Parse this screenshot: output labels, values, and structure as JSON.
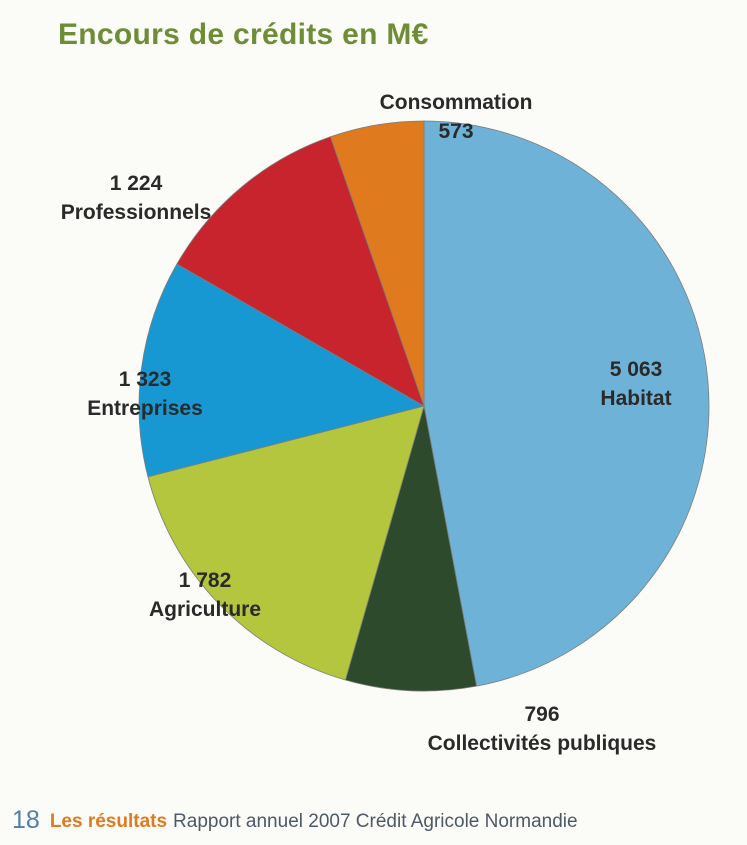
{
  "title": "Encours de crédits en M€",
  "chart_data": {
    "type": "pie",
    "title": "Encours de crédits en M€",
    "slices": [
      {
        "label": "Habitat",
        "value": 5063,
        "value_text": "5 063",
        "color": "#6fb2d8"
      },
      {
        "label": "Collectivités publiques",
        "value": 796,
        "value_text": "796",
        "color": "#2d4a2c"
      },
      {
        "label": "Agriculture",
        "value": 1782,
        "value_text": "1 782",
        "color": "#b3c63d"
      },
      {
        "label": "Entreprises",
        "value": 1323,
        "value_text": "1 323",
        "color": "#1898d3"
      },
      {
        "label": "Professionnels",
        "value": 1224,
        "value_text": "1 224",
        "color": "#c8242e"
      },
      {
        "label": "Consommation",
        "value": 573,
        "value_text": "573",
        "color": "#e07a1f"
      }
    ]
  },
  "footer": {
    "page_number": "18",
    "section": "Les résultats",
    "text": "Rapport annuel 2007 Crédit Agricole Normandie"
  }
}
